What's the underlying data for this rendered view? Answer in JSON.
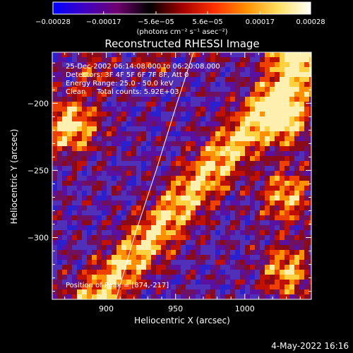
{
  "chart_data": {
    "type": "heatmap",
    "title": "Reconstructed RHESSI Image",
    "xlabel": "Heliocentric X (arcsec)",
    "ylabel": "Heliocentric Y (arcsec)",
    "xlim": [
      861,
      1048
    ],
    "ylim": [
      -346,
      -162
    ],
    "x_ticks": [
      900,
      950,
      1000
    ],
    "x_tick_labels": [
      "900",
      "950",
      "1000"
    ],
    "y_ticks": [
      -200,
      -250,
      -300
    ],
    "y_tick_labels": [
      "−200",
      "−250",
      "−300"
    ],
    "colorbar": {
      "range": [
        -0.00028,
        0.00028
      ],
      "ticks": [
        -0.00028,
        -0.00017,
        -5.6e-05,
        5.6e-05,
        0.00017,
        0.00028
      ],
      "tick_labels": [
        "−0.00028",
        "−0.00017",
        "−5.6e−05",
        "5.6e−05",
        "0.00017",
        "0.00028"
      ],
      "unit_label": "(photons cm⁻² s⁻¹ asec⁻²)",
      "colormap": [
        "#0000ff",
        "#4000c0",
        "#700070",
        "#000000",
        "#a00000",
        "#ff3000",
        "#ff9000",
        "#ffe060",
        "#ffffff"
      ]
    },
    "annotations": [
      "25-Dec-2002 06:14:08.000 to 06:20:08.000",
      "Detectors: 3F 4F 5F 6F 7F 8F, Att 0",
      "Energy Range: 25.0 - 50.0 keV",
      "Clean     Total counts: 5.92E+03"
    ],
    "peak_label": "Position of Peak = [874,-217]",
    "peak": [
      874,
      -217
    ],
    "limb_curve": [
      [
        963,
        -162
      ],
      [
        951,
        -200
      ],
      [
        936,
        -250
      ],
      [
        920,
        -300
      ],
      [
        907,
        -346
      ]
    ]
  },
  "timestamp": "4-May-2022 16:16"
}
